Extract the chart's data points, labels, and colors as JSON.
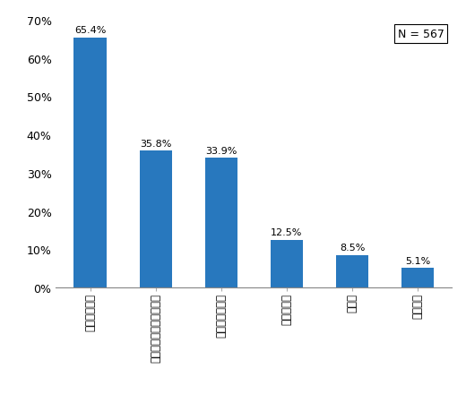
{
  "categories": [
    "株式投資信託",
    "外国で作られた投資信託",
    "公社債投資信託",
    "不動産投信",
    "ＥＴＦ",
    "種類不明"
  ],
  "values": [
    65.4,
    35.8,
    33.9,
    12.5,
    8.5,
    5.1
  ],
  "labels": [
    "65.4%",
    "35.8%",
    "33.9%",
    "12.5%",
    "8.5%",
    "5.1%"
  ],
  "bar_color": "#2878BE",
  "ylim": [
    0,
    70
  ],
  "yticks": [
    0,
    10,
    20,
    30,
    40,
    50,
    60,
    70
  ],
  "ytick_labels": [
    "0%",
    "10%",
    "20%",
    "30%",
    "40%",
    "50%",
    "60%",
    "70%"
  ],
  "n_label": "N = 567",
  "background_color": "#ffffff",
  "bar_width": 0.5
}
